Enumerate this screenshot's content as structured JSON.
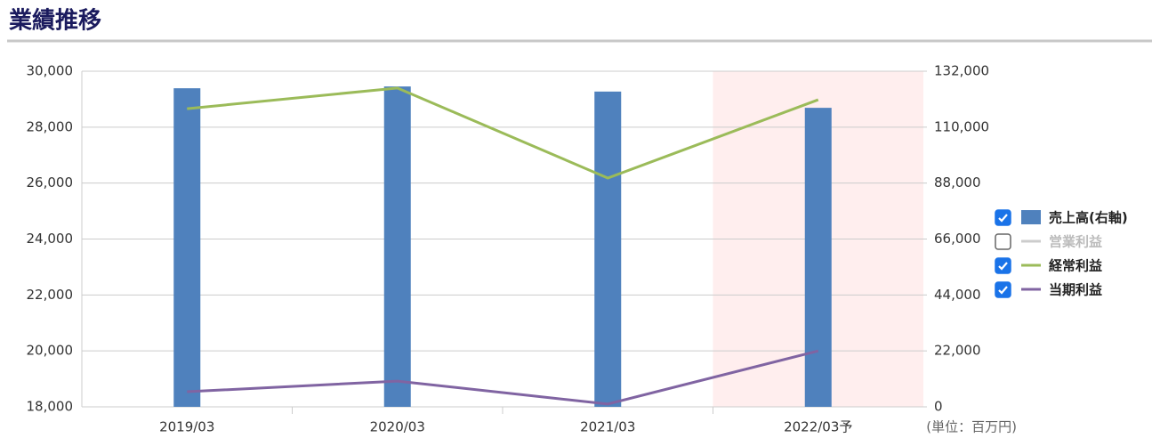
{
  "title": "業績推移",
  "chart_data": {
    "type": "bar-line",
    "categories": [
      "2019/03",
      "2020/03",
      "2021/03",
      "2022/03予"
    ],
    "series": [
      {
        "name": "売上高(右軸)",
        "color": "#4f81bd",
        "type": "bar",
        "axis": "y2",
        "visible": true,
        "values": [
          125300,
          126000,
          124000,
          117600
        ]
      },
      {
        "name": "営業利益",
        "color": "#cccccc",
        "type": "line",
        "visible": false,
        "values": [
          null,
          null,
          null,
          null
        ]
      },
      {
        "name": "経常利益",
        "color": "#9bbb59",
        "type": "line",
        "visible": true,
        "values": [
          28660,
          29400,
          26180,
          28980
        ]
      },
      {
        "name": "当期利益",
        "color": "#8064a2",
        "type": "line",
        "visible": true,
        "values": [
          18540,
          18920,
          18100,
          20000
        ]
      }
    ],
    "ylim": [
      18000,
      30000
    ],
    "yticks": [
      {
        "value": 18000,
        "label": "18,000"
      },
      {
        "value": 20000,
        "label": "20,000"
      },
      {
        "value": 22000,
        "label": "22,000"
      },
      {
        "value": 24000,
        "label": "24,000"
      },
      {
        "value": 26000,
        "label": "26,000"
      },
      {
        "value": 28000,
        "label": "28,000"
      },
      {
        "value": 30000,
        "label": "30,000"
      }
    ],
    "y2lim": [
      0,
      132000
    ],
    "y2ticks": [
      0,
      {
        "value": 22000,
        "label": "22,000"
      },
      {
        "value": 44000,
        "label": "44,000"
      },
      {
        "value": 66000,
        "label": "66,000"
      },
      {
        "value": 88000,
        "label": "88,000"
      },
      {
        "value": 110000,
        "label": "110,000"
      },
      {
        "value": 132000,
        "label": "132,000"
      }
    ],
    "unit_label": "(単位：百万円)",
    "grid": true
  }
}
